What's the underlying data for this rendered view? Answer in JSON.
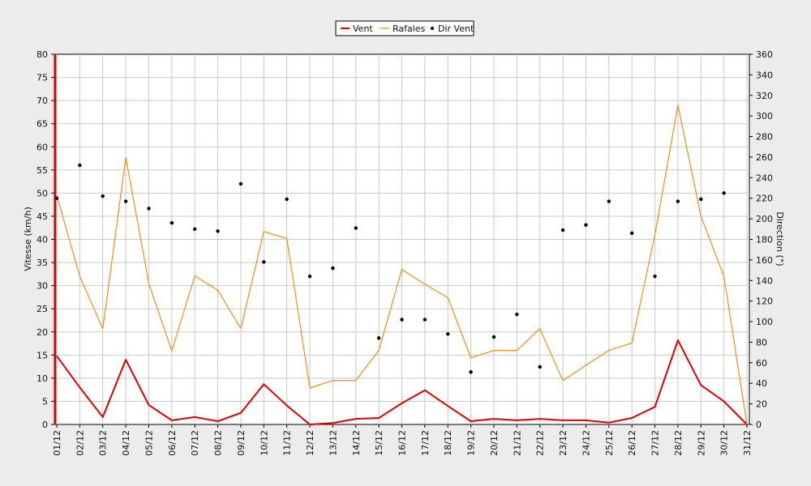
{
  "colors": {
    "background": "#ececec",
    "plot_background": "#ffffff",
    "grid": "#c8c8c8",
    "vent": "#e00000",
    "rafales": "#f08c1e",
    "dir_vent": "#000000"
  },
  "chart_data": {
    "type": "line",
    "legend_position": "top-center",
    "grid": true,
    "categories": [
      "01/12",
      "02/12",
      "03/12",
      "04/12",
      "05/12",
      "06/12",
      "07/12",
      "08/12",
      "09/12",
      "10/12",
      "11/12",
      "12/12",
      "13/12",
      "14/12",
      "15/12",
      "16/12",
      "17/12",
      "18/12",
      "19/12",
      "20/12",
      "21/12",
      "22/12",
      "23/12",
      "24/12",
      "25/12",
      "26/12",
      "27/12",
      "28/12",
      "29/12",
      "30/12",
      "31/12"
    ],
    "ylabel": "Vitesse (km/h)",
    "ylim": [
      0,
      80
    ],
    "yticks": [
      0,
      5,
      10,
      15,
      20,
      25,
      30,
      35,
      40,
      45,
      50,
      55,
      60,
      65,
      70,
      75,
      80
    ],
    "y2label": "Direction (°)",
    "y2lim": [
      0,
      360
    ],
    "y2ticks": [
      0,
      20,
      40,
      60,
      80,
      100,
      120,
      140,
      160,
      180,
      200,
      220,
      240,
      260,
      280,
      300,
      320,
      340,
      360
    ],
    "series": [
      {
        "name": "Vent",
        "kind": "line",
        "axis": "left",
        "values": [
          14.8,
          8.0,
          1.6,
          14.0,
          4.2,
          0.9,
          1.6,
          0.7,
          2.5,
          8.7,
          4.1,
          0.0,
          0.3,
          1.2,
          1.4,
          4.6,
          7.4,
          4.0,
          0.7,
          1.2,
          0.9,
          1.2,
          0.9,
          0.9,
          0.4,
          1.4,
          3.8,
          18.2,
          8.5,
          5.0,
          0.0
        ]
      },
      {
        "name": "Rafales",
        "kind": "line",
        "axis": "left",
        "values": [
          49.5,
          32.0,
          20.7,
          57.7,
          30.5,
          15.9,
          32.1,
          29.0,
          20.7,
          41.7,
          40.2,
          7.9,
          9.5,
          9.5,
          16.0,
          33.5,
          30.3,
          27.4,
          14.4,
          16.0,
          16.0,
          20.7,
          9.5,
          12.8,
          16.0,
          17.6,
          41.0,
          69.0,
          45.0,
          32.0,
          0.0
        ]
      },
      {
        "name": "Dir Vent",
        "kind": "scatter",
        "axis": "right",
        "values": [
          220,
          252,
          222,
          217,
          210,
          196,
          190,
          188,
          234,
          158,
          219,
          144,
          152,
          191,
          84,
          102,
          102,
          88,
          51,
          85,
          107,
          56,
          189,
          194,
          217,
          186,
          144,
          217,
          219,
          225,
          null
        ]
      }
    ]
  }
}
